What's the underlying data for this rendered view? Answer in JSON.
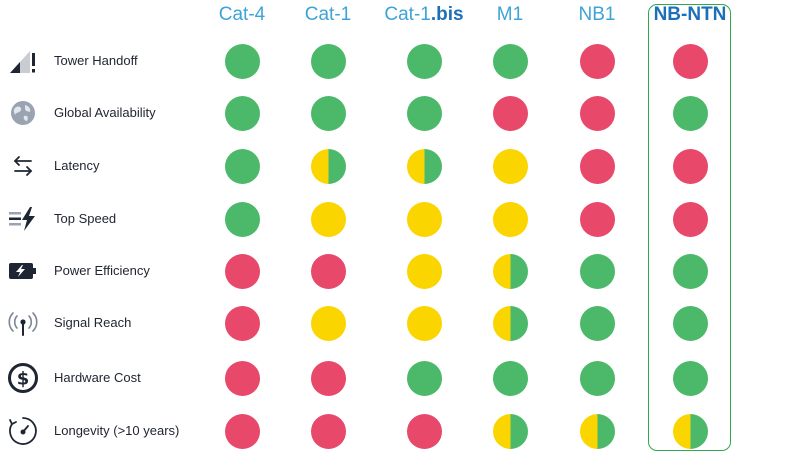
{
  "colors": {
    "green": "#4cb96a",
    "yellow": "#fbd500",
    "red": "#e8486a",
    "header": "#3ea3d6",
    "header_accent": "#1d6fb8",
    "highlight_border": "#2fa84f"
  },
  "columns": [
    {
      "id": "cat4",
      "parts": [
        {
          "text": "Cat-4"
        }
      ]
    },
    {
      "id": "cat1",
      "parts": [
        {
          "text": "Cat-1"
        }
      ]
    },
    {
      "id": "cat1bis",
      "parts": [
        {
          "text": "Cat-1"
        },
        {
          "text": ".bis",
          "accent": true
        }
      ]
    },
    {
      "id": "m1",
      "parts": [
        {
          "text": "M1"
        }
      ]
    },
    {
      "id": "nb1",
      "parts": [
        {
          "text": "NB1"
        }
      ]
    },
    {
      "id": "nbntn",
      "parts": [
        {
          "text": "NB-NTN",
          "accent": true
        }
      ],
      "highlighted": true
    }
  ],
  "rows": [
    {
      "label": "Tower Handoff",
      "icon": "signal-warning-icon",
      "ratings": [
        "green",
        "green",
        "green",
        "green",
        "red",
        "red"
      ]
    },
    {
      "label": "Global Availability",
      "icon": "globe-icon",
      "ratings": [
        "green",
        "green",
        "green",
        "red",
        "red",
        "green"
      ]
    },
    {
      "label": "Latency",
      "icon": "arrows-left-right-icon",
      "ratings": [
        "green",
        "yellow-green",
        "yellow-green",
        "yellow",
        "red",
        "red"
      ]
    },
    {
      "label": "Top Speed",
      "icon": "speed-bolt-icon",
      "ratings": [
        "green",
        "yellow",
        "yellow",
        "yellow",
        "red",
        "red"
      ]
    },
    {
      "label": "Power Efficiency",
      "icon": "battery-bolt-icon",
      "ratings": [
        "red",
        "red",
        "yellow",
        "yellow-green",
        "green",
        "green"
      ]
    },
    {
      "label": "Signal Reach",
      "icon": "antenna-icon",
      "ratings": [
        "red",
        "yellow",
        "yellow",
        "yellow-green",
        "green",
        "green"
      ]
    },
    {
      "label": "Hardware Cost",
      "icon": "dollar-circle-icon",
      "ratings": [
        "red",
        "red",
        "green",
        "green",
        "green",
        "green"
      ]
    },
    {
      "label": "Longevity (>10 years)",
      "icon": "stopwatch-icon",
      "ratings": [
        "red",
        "red",
        "red",
        "yellow-green",
        "yellow-green",
        "yellow-green"
      ]
    }
  ]
}
